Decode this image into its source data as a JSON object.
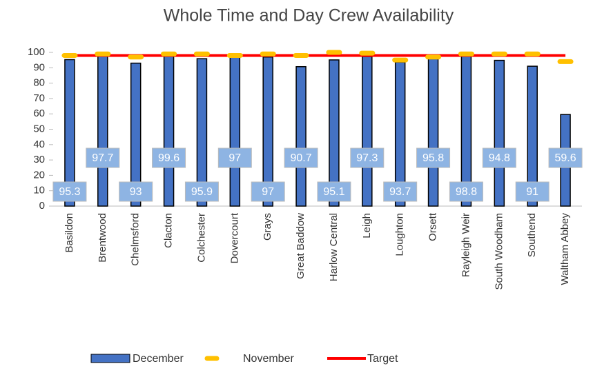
{
  "chart_data": {
    "type": "bar",
    "title": "Whole Time and Day Crew Availability",
    "categories": [
      "Basildon",
      "Brentwood",
      "Chelmsford",
      "Clacton",
      "Colchester",
      "Dovercourt",
      "Grays",
      "Great Baddow",
      "Harlow Central",
      "Leigh",
      "Loughton",
      "Orsett",
      "Rayleigh Weir",
      "South Woodham",
      "Southend",
      "Waltham Abbey"
    ],
    "series": [
      {
        "name": "December",
        "type": "bar",
        "color": "#4472c4",
        "values": [
          95.3,
          97.7,
          93,
          99.6,
          95.9,
          97,
          97,
          90.7,
          95.1,
          97.3,
          93.7,
          95.8,
          98.8,
          94.8,
          91,
          59.6
        ]
      },
      {
        "name": "November",
        "type": "marker",
        "color": "#ffc000",
        "values": [
          98,
          99,
          97,
          99,
          99,
          98,
          99,
          98,
          100,
          99.5,
          95,
          97,
          99,
          99,
          99,
          94
        ]
      },
      {
        "name": "Target",
        "type": "line",
        "color": "#ff0000",
        "values": [
          98,
          98,
          98,
          98,
          98,
          98,
          98,
          98,
          98,
          98,
          98,
          98,
          98,
          98,
          98,
          98
        ]
      }
    ],
    "ylim": [
      0,
      100
    ],
    "yticks": [
      0,
      10,
      20,
      30,
      40,
      50,
      60,
      70,
      80,
      90,
      100
    ],
    "legend": "bottom"
  }
}
